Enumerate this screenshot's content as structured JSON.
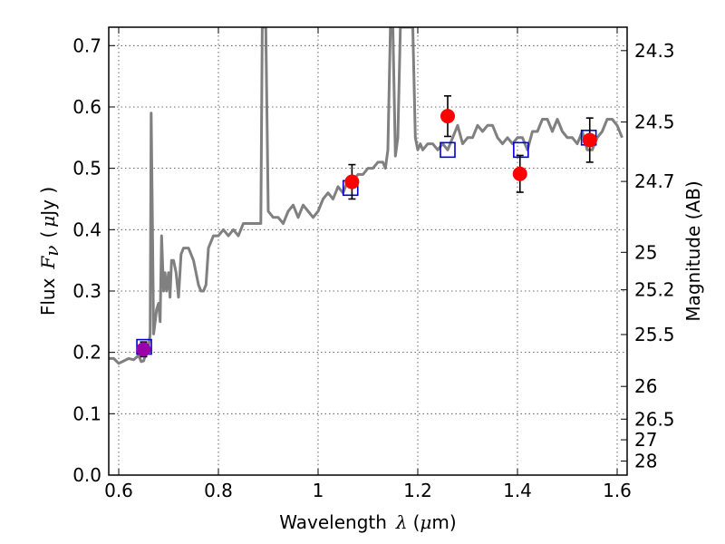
{
  "chart_data": {
    "type": "line",
    "title": "",
    "xlabel": {
      "text": "Wavelength",
      "symbol": "λ",
      "unit_open": "(",
      "unit_mu": "μ",
      "unit_rest": "m)"
    },
    "ylabel": {
      "text": "Flux",
      "symbol": "F",
      "subscript": "ν",
      "unit_open": "(",
      "unit_mu": "μ",
      "unit_rest": "Jy )"
    },
    "y2label": "Magnitude (AB)",
    "xlim": [
      0.58,
      1.62
    ],
    "ylim": [
      0.0,
      0.73
    ],
    "xticks": [
      "0.6",
      "0.8",
      "1",
      "1.2",
      "1.4",
      "1.6"
    ],
    "xtick_values": [
      0.6,
      0.8,
      1.0,
      1.2,
      1.4,
      1.6
    ],
    "yticks": [
      "0.0",
      "0.1",
      "0.2",
      "0.3",
      "0.4",
      "0.5",
      "0.6",
      "0.7"
    ],
    "ytick_values": [
      0.0,
      0.1,
      0.2,
      0.3,
      0.4,
      0.5,
      0.6,
      0.7
    ],
    "y2ticks": [
      "24.3",
      "24.5",
      "24.7",
      "25",
      "25.2",
      "25.5",
      "26",
      "26.5",
      "27",
      "28"
    ],
    "y2tick_values": [
      24.3,
      24.5,
      24.7,
      25.0,
      25.2,
      25.5,
      26.0,
      26.5,
      27.0,
      28.0
    ],
    "grid": true,
    "colors": {
      "spectrum": "#808080",
      "observed": "#ff0000",
      "model": "#0000cc",
      "errorbar": "#000000",
      "first_point": "#9900aa"
    },
    "spectrum": {
      "x": [
        0.58,
        0.59,
        0.6,
        0.61,
        0.62,
        0.63,
        0.64,
        0.645,
        0.65,
        0.655,
        0.66,
        0.663,
        0.665,
        0.667,
        0.67,
        0.673,
        0.676,
        0.68,
        0.683,
        0.686,
        0.69,
        0.693,
        0.696,
        0.7,
        0.703,
        0.706,
        0.71,
        0.715,
        0.72,
        0.725,
        0.73,
        0.735,
        0.74,
        0.745,
        0.75,
        0.755,
        0.76,
        0.765,
        0.77,
        0.775,
        0.78,
        0.79,
        0.8,
        0.81,
        0.82,
        0.83,
        0.84,
        0.85,
        0.86,
        0.87,
        0.88,
        0.885,
        0.888,
        0.89,
        0.892,
        0.895,
        0.9,
        0.91,
        0.92,
        0.93,
        0.94,
        0.95,
        0.96,
        0.97,
        0.98,
        0.99,
        1.0,
        1.01,
        1.02,
        1.03,
        1.04,
        1.05,
        1.06,
        1.07,
        1.08,
        1.09,
        1.1,
        1.11,
        1.12,
        1.13,
        1.135,
        1.14,
        1.145,
        1.15,
        1.155,
        1.16,
        1.165,
        1.17,
        1.175,
        1.18,
        1.185,
        1.19,
        1.195,
        1.2,
        1.205,
        1.21,
        1.22,
        1.23,
        1.24,
        1.25,
        1.26,
        1.27,
        1.28,
        1.29,
        1.3,
        1.31,
        1.32,
        1.33,
        1.34,
        1.35,
        1.36,
        1.37,
        1.38,
        1.39,
        1.4,
        1.41,
        1.42,
        1.43,
        1.44,
        1.45,
        1.46,
        1.47,
        1.48,
        1.49,
        1.5,
        1.51,
        1.52,
        1.53,
        1.54,
        1.55,
        1.56,
        1.57,
        1.58,
        1.59,
        1.6,
        1.61
      ],
      "y": [
        0.19,
        0.19,
        0.182,
        0.186,
        0.19,
        0.188,
        0.195,
        0.185,
        0.186,
        0.2,
        0.21,
        0.23,
        0.59,
        0.45,
        0.23,
        0.25,
        0.27,
        0.28,
        0.25,
        0.39,
        0.3,
        0.33,
        0.3,
        0.33,
        0.29,
        0.35,
        0.35,
        0.33,
        0.29,
        0.36,
        0.37,
        0.37,
        0.37,
        0.36,
        0.35,
        0.33,
        0.31,
        0.3,
        0.3,
        0.31,
        0.37,
        0.39,
        0.39,
        0.4,
        0.39,
        0.4,
        0.39,
        0.41,
        0.41,
        0.41,
        0.41,
        0.41,
        0.73,
        0.73,
        0.73,
        0.73,
        0.43,
        0.42,
        0.42,
        0.41,
        0.43,
        0.44,
        0.42,
        0.44,
        0.43,
        0.42,
        0.43,
        0.45,
        0.46,
        0.45,
        0.47,
        0.46,
        0.48,
        0.48,
        0.49,
        0.49,
        0.5,
        0.5,
        0.51,
        0.51,
        0.5,
        0.53,
        0.73,
        0.73,
        0.52,
        0.55,
        0.73,
        0.73,
        0.73,
        0.73,
        0.73,
        0.73,
        0.55,
        0.53,
        0.54,
        0.53,
        0.54,
        0.54,
        0.53,
        0.54,
        0.53,
        0.55,
        0.57,
        0.54,
        0.55,
        0.55,
        0.57,
        0.56,
        0.57,
        0.57,
        0.55,
        0.54,
        0.55,
        0.54,
        0.55,
        0.55,
        0.53,
        0.56,
        0.56,
        0.58,
        0.58,
        0.56,
        0.58,
        0.56,
        0.55,
        0.55,
        0.54,
        0.56,
        0.53,
        0.53,
        0.55,
        0.56,
        0.58,
        0.58,
        0.57,
        0.55
      ]
    },
    "observed": {
      "x": [
        0.65,
        1.068,
        1.26,
        1.405,
        1.545
      ],
      "y": [
        0.205,
        0.478,
        0.585,
        0.491,
        0.546
      ],
      "err": [
        0.012,
        0.028,
        0.033,
        0.03,
        0.036
      ]
    },
    "model": {
      "x": [
        0.651,
        1.065,
        1.26,
        1.407,
        1.543
      ],
      "y": [
        0.209,
        0.468,
        0.53,
        0.53,
        0.55
      ]
    }
  }
}
